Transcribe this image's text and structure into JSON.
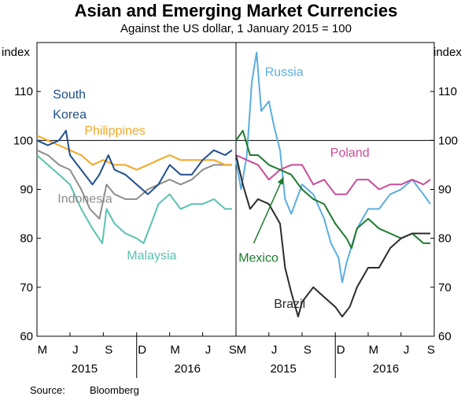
{
  "title": "Asian and Emerging Market Currencies",
  "subtitle": "Against the US dollar, 1 January 2015 = 100",
  "source": {
    "label": "Source:",
    "value": "Bloomberg"
  },
  "chart_data": [
    {
      "type": "line",
      "panel": "left",
      "ylabel": "index",
      "ylim": [
        60,
        120
      ],
      "yticks": [
        60,
        70,
        80,
        90,
        100,
        110
      ],
      "xlim": [
        "2015-04-01",
        "2016-10-01"
      ],
      "x_month_ticks": [
        "M",
        "J",
        "S",
        "D",
        "M",
        "J",
        "S"
      ],
      "x_year_labels": [
        "2015",
        "2016"
      ],
      "reference_line": 100,
      "series": [
        {
          "name": "Indonesia",
          "color": "#8c8c8c",
          "points": [
            [
              "2015-04-01",
              98
            ],
            [
              "2015-05-01",
              97
            ],
            [
              "2015-06-01",
              95
            ],
            [
              "2015-07-01",
              94
            ],
            [
              "2015-08-01",
              90
            ],
            [
              "2015-08-25",
              86
            ],
            [
              "2015-09-20",
              84
            ],
            [
              "2015-10-10",
              91
            ],
            [
              "2015-11-01",
              89
            ],
            [
              "2015-12-01",
              88
            ],
            [
              "2016-01-01",
              88
            ],
            [
              "2016-02-01",
              90
            ],
            [
              "2016-03-01",
              91
            ],
            [
              "2016-04-01",
              92
            ],
            [
              "2016-05-01",
              91
            ],
            [
              "2016-06-01",
              92
            ],
            [
              "2016-07-01",
              94
            ],
            [
              "2016-08-01",
              95
            ],
            [
              "2016-09-01",
              95
            ],
            [
              "2016-09-20",
              95
            ]
          ]
        },
        {
          "name": "Malaysia",
          "color": "#5bc2b0",
          "points": [
            [
              "2015-04-01",
              97
            ],
            [
              "2015-05-01",
              95
            ],
            [
              "2015-06-01",
              93
            ],
            [
              "2015-07-01",
              91
            ],
            [
              "2015-08-01",
              86
            ],
            [
              "2015-09-01",
              82
            ],
            [
              "2015-09-28",
              79
            ],
            [
              "2015-10-10",
              86
            ],
            [
              "2015-11-01",
              83
            ],
            [
              "2015-12-01",
              81
            ],
            [
              "2016-01-01",
              80
            ],
            [
              "2016-01-20",
              79
            ],
            [
              "2016-02-10",
              83
            ],
            [
              "2016-03-01",
              87
            ],
            [
              "2016-04-01",
              89
            ],
            [
              "2016-05-01",
              86
            ],
            [
              "2016-06-01",
              87
            ],
            [
              "2016-07-01",
              87
            ],
            [
              "2016-08-01",
              88
            ],
            [
              "2016-09-01",
              86
            ],
            [
              "2016-09-20",
              86
            ]
          ]
        },
        {
          "name": "Philippines",
          "color": "#f5a623",
          "points": [
            [
              "2015-04-01",
              101
            ],
            [
              "2015-05-01",
              100
            ],
            [
              "2015-06-01",
              99
            ],
            [
              "2015-07-01",
              98
            ],
            [
              "2015-08-01",
              97
            ],
            [
              "2015-09-01",
              95
            ],
            [
              "2015-10-01",
              96
            ],
            [
              "2015-11-01",
              95
            ],
            [
              "2015-12-01",
              95
            ],
            [
              "2016-01-01",
              94
            ],
            [
              "2016-02-01",
              95
            ],
            [
              "2016-03-01",
              96
            ],
            [
              "2016-04-01",
              97
            ],
            [
              "2016-05-01",
              96
            ],
            [
              "2016-06-01",
              96
            ],
            [
              "2016-07-01",
              96
            ],
            [
              "2016-08-01",
              96
            ],
            [
              "2016-09-01",
              95
            ],
            [
              "2016-09-20",
              95
            ]
          ]
        },
        {
          "name": "South Korea",
          "color": "#1f4e8c",
          "points": [
            [
              "2015-04-01",
              100
            ],
            [
              "2015-05-01",
              99
            ],
            [
              "2015-06-01",
              100
            ],
            [
              "2015-06-20",
              102
            ],
            [
              "2015-07-01",
              97
            ],
            [
              "2015-08-01",
              94
            ],
            [
              "2015-09-01",
              91
            ],
            [
              "2015-09-20",
              93
            ],
            [
              "2015-10-15",
              97
            ],
            [
              "2015-11-01",
              94
            ],
            [
              "2015-12-01",
              93
            ],
            [
              "2016-01-01",
              91
            ],
            [
              "2016-02-01",
              89
            ],
            [
              "2016-03-01",
              91
            ],
            [
              "2016-04-01",
              95
            ],
            [
              "2016-05-01",
              93
            ],
            [
              "2016-06-01",
              93
            ],
            [
              "2016-07-01",
              96
            ],
            [
              "2016-08-01",
              98
            ],
            [
              "2016-09-01",
              97
            ],
            [
              "2016-09-20",
              98
            ]
          ]
        }
      ],
      "labels": [
        {
          "text": "South",
          "series": "South Korea",
          "x": "2015-05-15",
          "y": 108.6
        },
        {
          "text": "Korea",
          "series": "South Korea",
          "x": "2015-05-15",
          "y": 104.5
        },
        {
          "text": "Philippines",
          "series": "Philippines",
          "x": "2015-08-10",
          "y": 101.2
        },
        {
          "text": "Indonesia",
          "series": "Indonesia",
          "x": "2015-05-28",
          "y": 87.3
        },
        {
          "text": "Malaysia",
          "series": "Malaysia",
          "x": "2015-12-05",
          "y": 75.7
        }
      ]
    },
    {
      "type": "line",
      "panel": "right",
      "ylabel": "index",
      "ylim": [
        60,
        120
      ],
      "yticks": [
        60,
        70,
        80,
        90,
        100,
        110
      ],
      "xlim": [
        "2015-04-01",
        "2016-10-01"
      ],
      "x_month_ticks": [
        "M",
        "J",
        "S",
        "D",
        "M",
        "J",
        "S"
      ],
      "x_year_labels": [
        "2015",
        "2016"
      ],
      "reference_line": 100,
      "series": [
        {
          "name": "Russia",
          "color": "#5aaee0",
          "points": [
            [
              "2015-04-01",
              96
            ],
            [
              "2015-04-15",
              90
            ],
            [
              "2015-05-01",
              97
            ],
            [
              "2015-05-15",
              112
            ],
            [
              "2015-05-28",
              118
            ],
            [
              "2015-06-10",
              106
            ],
            [
              "2015-07-01",
              108
            ],
            [
              "2015-07-15",
              103
            ],
            [
              "2015-08-01",
              98
            ],
            [
              "2015-08-15",
              88
            ],
            [
              "2015-09-01",
              85
            ],
            [
              "2015-10-01",
              91
            ],
            [
              "2015-11-01",
              89
            ],
            [
              "2015-12-01",
              84
            ],
            [
              "2015-12-20",
              79
            ],
            [
              "2016-01-10",
              76
            ],
            [
              "2016-01-20",
              71
            ],
            [
              "2016-02-01",
              75
            ],
            [
              "2016-03-01",
              82
            ],
            [
              "2016-04-01",
              86
            ],
            [
              "2016-05-01",
              86
            ],
            [
              "2016-06-01",
              89
            ],
            [
              "2016-07-01",
              90
            ],
            [
              "2016-08-01",
              92
            ],
            [
              "2016-09-01",
              89
            ],
            [
              "2016-09-20",
              87
            ]
          ]
        },
        {
          "name": "Poland",
          "color": "#c94c9a",
          "points": [
            [
              "2015-04-01",
              97
            ],
            [
              "2015-05-01",
              96
            ],
            [
              "2015-06-01",
              95
            ],
            [
              "2015-07-01",
              92
            ],
            [
              "2015-08-01",
              94
            ],
            [
              "2015-09-01",
              95
            ],
            [
              "2015-10-01",
              95
            ],
            [
              "2015-11-01",
              91
            ],
            [
              "2015-12-01",
              92
            ],
            [
              "2016-01-01",
              89
            ],
            [
              "2016-02-01",
              89
            ],
            [
              "2016-03-01",
              92
            ],
            [
              "2016-04-01",
              92
            ],
            [
              "2016-05-01",
              90
            ],
            [
              "2016-06-01",
              91
            ],
            [
              "2016-07-01",
              91
            ],
            [
              "2016-08-01",
              92
            ],
            [
              "2016-09-01",
              91
            ],
            [
              "2016-09-20",
              92
            ]
          ]
        },
        {
          "name": "Mexico",
          "color": "#1e7a2e",
          "points": [
            [
              "2015-04-01",
              100
            ],
            [
              "2015-04-20",
              102
            ],
            [
              "2015-05-10",
              97
            ],
            [
              "2015-06-01",
              97
            ],
            [
              "2015-07-01",
              95
            ],
            [
              "2015-08-01",
              94
            ],
            [
              "2015-09-01",
              93
            ],
            [
              "2015-10-01",
              90
            ],
            [
              "2015-11-01",
              88
            ],
            [
              "2015-12-01",
              87
            ],
            [
              "2016-01-01",
              83
            ],
            [
              "2016-02-01",
              80
            ],
            [
              "2016-02-15",
              78
            ],
            [
              "2016-03-01",
              82
            ],
            [
              "2016-04-01",
              84
            ],
            [
              "2016-05-01",
              82
            ],
            [
              "2016-06-01",
              81
            ],
            [
              "2016-07-01",
              80
            ],
            [
              "2016-08-01",
              81
            ],
            [
              "2016-09-01",
              79
            ],
            [
              "2016-09-20",
              79
            ]
          ]
        },
        {
          "name": "Brazil",
          "color": "#2b2b2b",
          "points": [
            [
              "2015-04-01",
              97
            ],
            [
              "2015-04-20",
              91
            ],
            [
              "2015-05-10",
              86
            ],
            [
              "2015-06-01",
              88
            ],
            [
              "2015-07-01",
              87
            ],
            [
              "2015-08-01",
              83
            ],
            [
              "2015-08-15",
              74
            ],
            [
              "2015-09-01",
              69
            ],
            [
              "2015-09-20",
              64
            ],
            [
              "2015-10-01",
              67
            ],
            [
              "2015-11-01",
              70
            ],
            [
              "2015-12-01",
              68
            ],
            [
              "2016-01-01",
              66
            ],
            [
              "2016-01-20",
              64
            ],
            [
              "2016-02-10",
              66
            ],
            [
              "2016-03-01",
              70
            ],
            [
              "2016-04-01",
              74
            ],
            [
              "2016-05-01",
              74
            ],
            [
              "2016-06-01",
              78
            ],
            [
              "2016-07-01",
              80
            ],
            [
              "2016-08-01",
              81
            ],
            [
              "2016-09-01",
              81
            ],
            [
              "2016-09-20",
              81
            ]
          ]
        }
      ],
      "labels": [
        {
          "text": "Russia",
          "series": "Russia",
          "x": "2015-06-20",
          "y": 113.2
        },
        {
          "text": "Poland",
          "series": "Poland",
          "x": "2015-12-18",
          "y": 96.7
        },
        {
          "text": "Mexico",
          "series": "Mexico",
          "x": "2015-04-08",
          "y": 75.2
        },
        {
          "text": "Brazil",
          "series": "Brazil",
          "x": "2015-07-15",
          "y": 65.8
        }
      ]
    }
  ]
}
